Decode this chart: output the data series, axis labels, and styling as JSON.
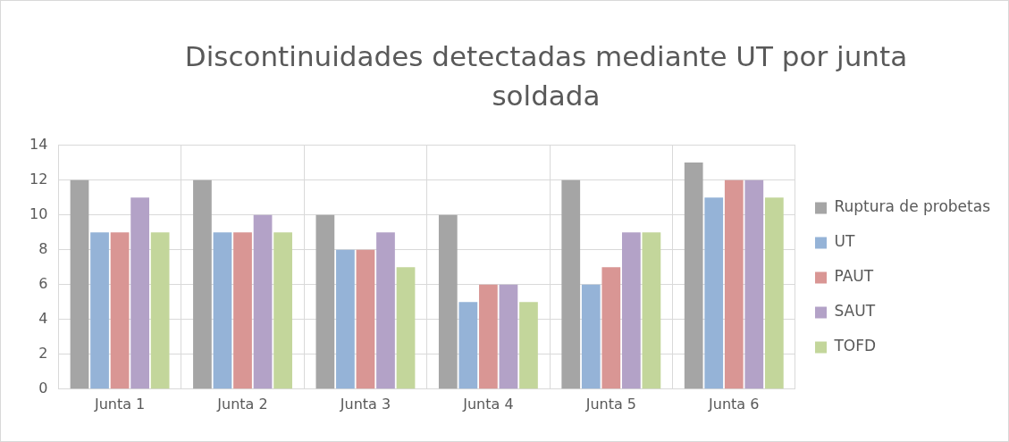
{
  "chart_data": {
    "type": "bar",
    "title": "Discontinuidades detectadas mediante UT por junta soldada",
    "categories": [
      "Junta 1",
      "Junta 2",
      "Junta 3",
      "Junta 4",
      "Junta 5",
      "Junta 6"
    ],
    "series": [
      {
        "name": "Ruptura de probetas",
        "color": "#a5a5a5",
        "values": [
          12,
          12,
          10,
          10,
          12,
          13
        ]
      },
      {
        "name": "UT",
        "color": "#95b3d7",
        "values": [
          9,
          9,
          8,
          5,
          6,
          11
        ]
      },
      {
        "name": "PAUT",
        "color": "#d99694",
        "values": [
          9,
          9,
          8,
          6,
          7,
          12
        ]
      },
      {
        "name": "SAUT",
        "color": "#b3a2c7",
        "values": [
          11,
          10,
          9,
          6,
          9,
          12
        ]
      },
      {
        "name": "TOFD",
        "color": "#c3d69b",
        "values": [
          9,
          9,
          7,
          5,
          9,
          11
        ]
      }
    ],
    "ylim": [
      0,
      14
    ],
    "yticks": [
      0,
      2,
      4,
      6,
      8,
      10,
      12,
      14
    ],
    "grid": true,
    "legend": "right"
  }
}
